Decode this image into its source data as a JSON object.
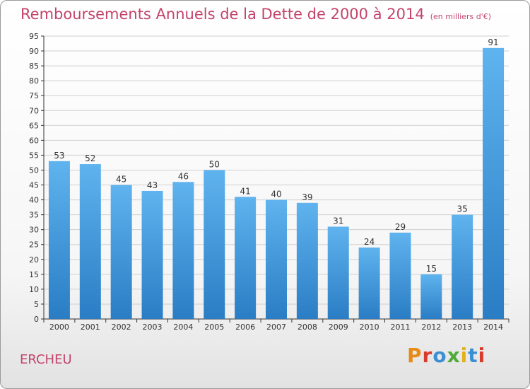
{
  "title": "Remboursements Annuels de la Dette de 2000 à 2014",
  "subtitle": "(en milliers d'€)",
  "commune": "ERCHEU",
  "logo": {
    "text": "Proxiti",
    "colors": [
      "#e88b16",
      "#d83b2b",
      "#3a8fd4",
      "#4fab3a",
      "#e3b21b",
      "#3a8fd4",
      "#d83b2b"
    ]
  },
  "colors": {
    "title": "#c4436b",
    "bar_light": "#5fb3ee",
    "bar_dark": "#2a7dc4",
    "axis": "#333333",
    "grid": "#d0d0d0"
  },
  "chart_data": {
    "type": "bar",
    "categories": [
      "2000",
      "2001",
      "2002",
      "2003",
      "2004",
      "2005",
      "2006",
      "2007",
      "2008",
      "2009",
      "2010",
      "2011",
      "2012",
      "2013",
      "2014"
    ],
    "values": [
      53,
      52,
      45,
      43,
      46,
      50,
      41,
      40,
      39,
      31,
      24,
      29,
      15,
      35,
      91
    ],
    "ylim": [
      0,
      95
    ],
    "yticks": [
      0,
      5,
      10,
      15,
      20,
      25,
      30,
      35,
      40,
      45,
      50,
      55,
      60,
      65,
      70,
      75,
      80,
      85,
      90,
      95
    ],
    "grid": true,
    "data_labels": true
  }
}
